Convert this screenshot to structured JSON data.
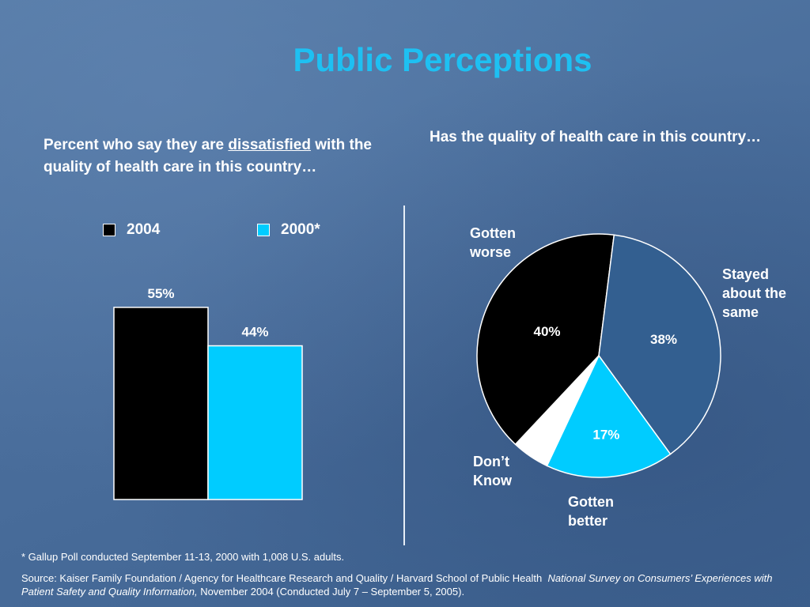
{
  "title": "Public Perceptions",
  "footnote": "* Gallup Poll conducted September 11-13, 2000 with 1,008 U.S. adults.",
  "source": {
    "prefix": "Source: Kaiser Family Foundation / Agency for Healthcare Research and Quality / Harvard School of Public Health",
    "italic": "National Survey on Consumers’ Experiences with Patient Safety and Quality Information,",
    "suffix": " November 2004 (Conducted July 7 – September 5, 2005)."
  },
  "colors": {
    "title": "#1ec0f2",
    "bar_2004": "#000000",
    "bar_2000": "#00ccff",
    "pie_worse": "#000000",
    "pie_same": "#335f90",
    "pie_better": "#00ccff",
    "pie_dontknow": "#ffffff"
  },
  "chart_data": [
    {
      "type": "bar",
      "title_parts": {
        "before": "Percent who say they are ",
        "underlined": "dissatisfied",
        "after": " with the quality of health care in this country…"
      },
      "series": [
        {
          "name": "2004",
          "values": [
            55
          ],
          "labels": [
            "55%"
          ]
        },
        {
          "name": "2000*",
          "values": [
            44
          ],
          "labels": [
            "44%"
          ]
        }
      ],
      "ylim": [
        0,
        100
      ],
      "grid": false,
      "legend": "top"
    },
    {
      "type": "pie",
      "title": "Has the quality of health care in this country…",
      "slices": [
        {
          "name": "Gotten worse",
          "value": 40,
          "label": "40%"
        },
        {
          "name": "Stayed about the same",
          "value": 38,
          "label": "38%"
        },
        {
          "name": "Gotten better",
          "value": 17,
          "label": "17%"
        },
        {
          "name": "Don’t Know",
          "value": 5,
          "label": ""
        }
      ]
    }
  ]
}
